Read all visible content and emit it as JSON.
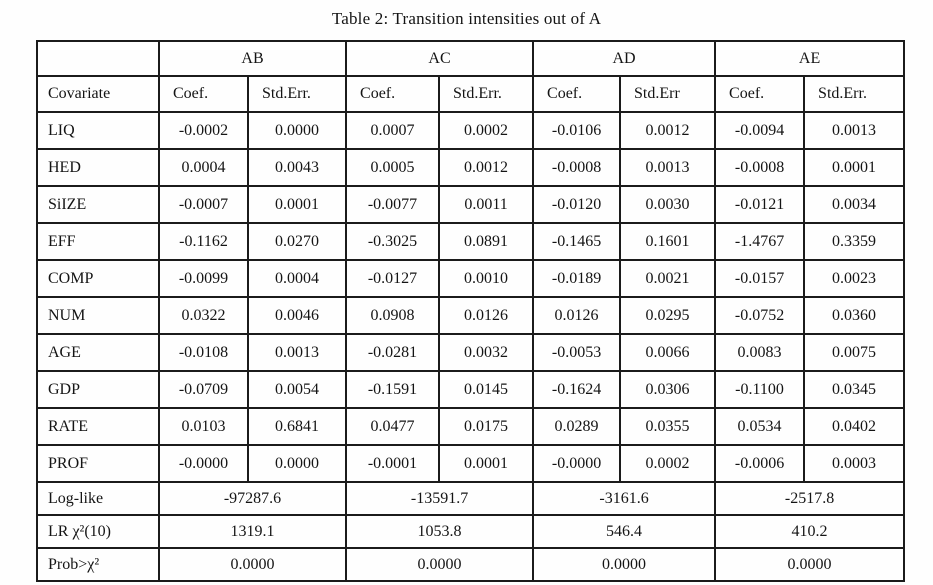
{
  "title": "Table 2: Transition intensities out of A",
  "table": {
    "corner": "",
    "groups": [
      "AB",
      "AC",
      "AD",
      "AE"
    ],
    "covariate_header": "Covariate",
    "col_headers": [
      "Coef.",
      "Std.Err.",
      "Coef.",
      "Std.Err.",
      "Coef.",
      "Std.Err",
      "Coef.",
      "Std.Err."
    ],
    "rows": [
      {
        "covariate": "LIQ",
        "values": [
          "-0.0002",
          "0.0000",
          "0.0007",
          "0.0002",
          "-0.0106",
          "0.0012",
          "-0.0094",
          "0.0013"
        ]
      },
      {
        "covariate": "HED",
        "values": [
          "0.0004",
          "0.0043",
          "0.0005",
          "0.0012",
          "-0.0008",
          "0.0013",
          "-0.0008",
          "0.0001"
        ]
      },
      {
        "covariate": "SiIZE",
        "values": [
          "-0.0007",
          "0.0001",
          "-0.0077",
          "0.0011",
          "-0.0120",
          "0.0030",
          "-0.0121",
          "0.0034"
        ]
      },
      {
        "covariate": "EFF",
        "values": [
          "-0.1162",
          "0.0270",
          "-0.3025",
          "0.0891",
          "-0.1465",
          "0.1601",
          "-1.4767",
          "0.3359"
        ]
      },
      {
        "covariate": "COMP",
        "values": [
          "-0.0099",
          "0.0004",
          "-0.0127",
          "0.0010",
          "-0.0189",
          "0.0021",
          "-0.0157",
          "0.0023"
        ]
      },
      {
        "covariate": "NUM",
        "values": [
          "0.0322",
          "0.0046",
          "0.0908",
          "0.0126",
          "0.0126",
          "0.0295",
          "-0.0752",
          "0.0360"
        ]
      },
      {
        "covariate": "AGE",
        "values": [
          "-0.0108",
          "0.0013",
          "-0.0281",
          "0.0032",
          "-0.0053",
          "0.0066",
          "0.0083",
          "0.0075"
        ]
      },
      {
        "covariate": "GDP",
        "values": [
          "-0.0709",
          "0.0054",
          "-0.1591",
          "0.0145",
          "-0.1624",
          "0.0306",
          "-0.1100",
          "0.0345"
        ]
      },
      {
        "covariate": "RATE",
        "values": [
          "0.0103",
          "0.6841",
          "0.0477",
          "0.0175",
          "0.0289",
          "0.0355",
          "0.0534",
          "0.0402"
        ]
      },
      {
        "covariate": "PROF",
        "values": [
          "-0.0000",
          "0.0000",
          "-0.0001",
          "0.0001",
          "-0.0000",
          "0.0002",
          "-0.0006",
          "0.0003"
        ]
      }
    ],
    "summary_rows": [
      {
        "label": "Log-like",
        "values": [
          "-97287.6",
          "-13591.7",
          "-3161.6",
          "-2517.8"
        ]
      },
      {
        "label": "LR χ²(10)",
        "values": [
          "1319.1",
          "1053.8",
          "546.4",
          "410.2"
        ]
      },
      {
        "label": "Prob>χ²",
        "values": [
          "0.0000",
          "0.0000",
          "0.0000",
          "0.0000"
        ]
      }
    ]
  }
}
